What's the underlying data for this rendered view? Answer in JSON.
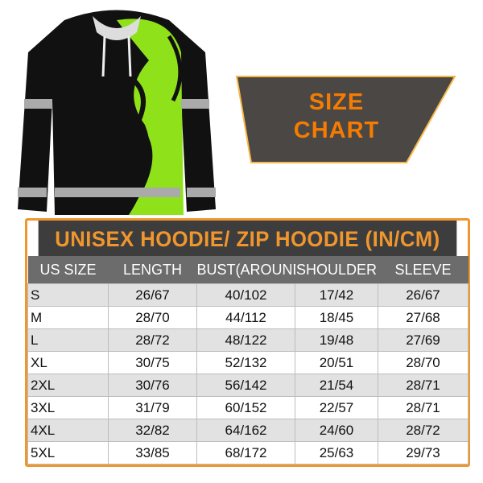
{
  "banner": {
    "line1": "SIZE",
    "line2": "CHART",
    "bg_color": "#4a4744",
    "text_color": "#f57c00"
  },
  "table": {
    "title": "UNISEX HOODIE/ ZIP HOODIE (IN/CM)",
    "headers": [
      "US SIZE",
      "LENGTH",
      "BUST(AROUND)",
      "SHOULDER",
      "SLEEVE"
    ],
    "rows": [
      [
        "S",
        "26/67",
        "40/102",
        "17/42",
        "26/67"
      ],
      [
        "M",
        "28/70",
        "44/112",
        "18/45",
        "27/68"
      ],
      [
        "L",
        "28/72",
        "48/122",
        "19/48",
        "27/69"
      ],
      [
        "XL",
        "30/75",
        "52/132",
        "20/51",
        "28/70"
      ],
      [
        "2XL",
        "30/76",
        "56/142",
        "21/54",
        "28/71"
      ],
      [
        "3XL",
        "31/79",
        "60/152",
        "22/57",
        "28/71"
      ],
      [
        "4XL",
        "32/82",
        "64/162",
        "24/60",
        "28/72"
      ],
      [
        "5XL",
        "33/85",
        "68/172",
        "25/63",
        "29/73"
      ]
    ],
    "accent_color": "#f0962e"
  },
  "product": {
    "image": "hoodie-black-neon-green-tribal",
    "accent_color": "#9cf01e"
  }
}
